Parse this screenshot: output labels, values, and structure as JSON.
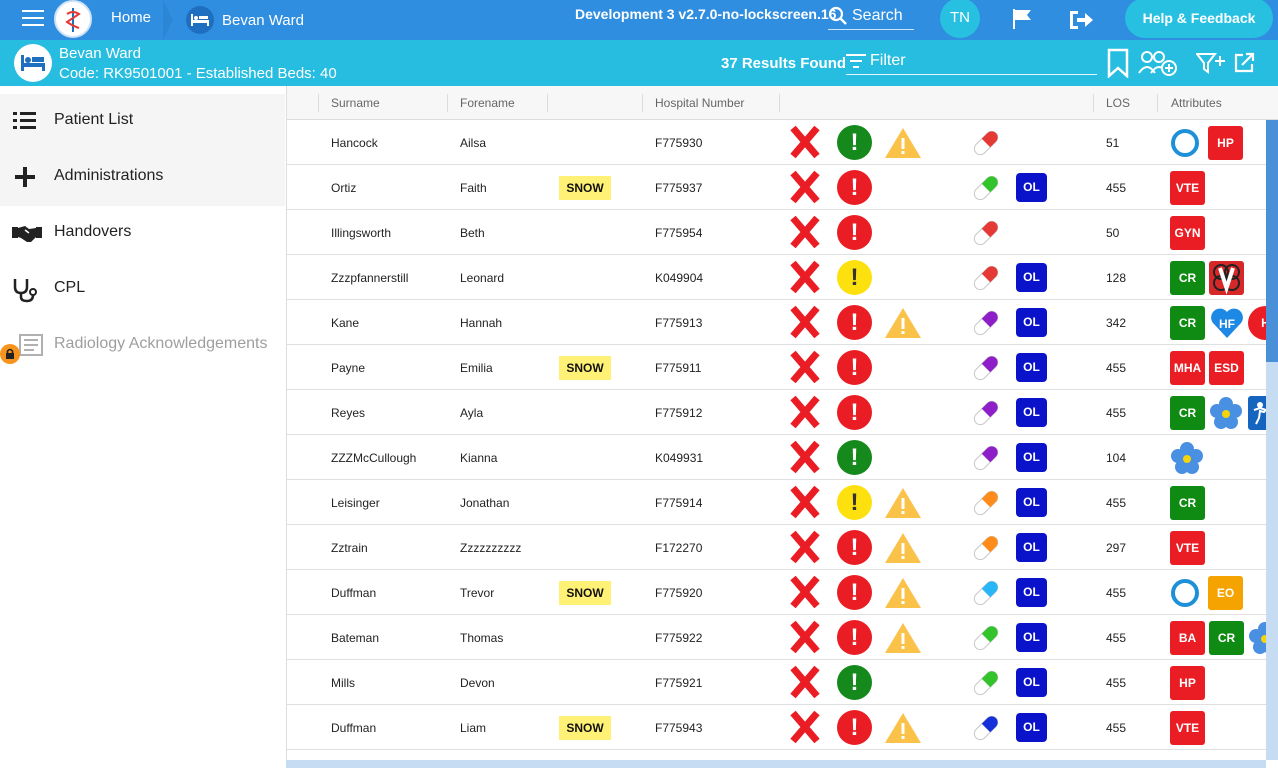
{
  "header": {
    "home_label": "Home",
    "ward_crumb": "Bevan Ward",
    "environment": "Development 3 v2.7.0-no-lockscreen.16",
    "search_label": "Search",
    "user_initials": "TN",
    "help_label": "Help & Feedback"
  },
  "ward": {
    "name": "Bevan Ward",
    "code_line": "Code: RK9501001 - Established Beds: 40",
    "results": "37 Results Found",
    "filter_label": "Filter"
  },
  "sidebar": {
    "items": [
      {
        "label": "Patient List",
        "icon": "list-icon"
      },
      {
        "label": "Administrations",
        "icon": "plus-icon"
      },
      {
        "label": "Handovers",
        "icon": "handshake-icon"
      },
      {
        "label": "CPL",
        "icon": "stethoscope-icon"
      },
      {
        "label": "Radiology Acknowledgements",
        "icon": "radiology-icon",
        "locked": true
      }
    ]
  },
  "table": {
    "headers": {
      "surname": "Surname",
      "forename": "Forename",
      "hospital_number": "Hospital Number",
      "los": "LOS",
      "attributes": "Attributes"
    },
    "rows": [
      {
        "surname": "Hancock",
        "forename": "Ailsa",
        "snow": "",
        "hosp": "F775930",
        "status": "green",
        "warn": true,
        "pill": "red",
        "ol": "",
        "los": "51",
        "attrs": [
          "ring",
          "HP"
        ]
      },
      {
        "surname": "Ortiz",
        "forename": "Faith",
        "snow": "SNOW",
        "hosp": "F775937",
        "status": "red",
        "warn": false,
        "pill": "green",
        "ol": "OL",
        "los": "455",
        "attrs": [
          "VTE"
        ]
      },
      {
        "surname": "Illingsworth",
        "forename": "Beth",
        "snow": "",
        "hosp": "F775954",
        "status": "red",
        "warn": false,
        "pill": "red",
        "ol": "",
        "los": "50",
        "attrs": [
          "GYN"
        ]
      },
      {
        "surname": "Zzzpfannerstill",
        "forename": "Leonard",
        "snow": "",
        "hosp": "K049904",
        "status": "yellow",
        "warn": false,
        "pill": "red",
        "ol": "OL",
        "los": "128",
        "attrs": [
          "CR",
          "V"
        ]
      },
      {
        "surname": "Kane",
        "forename": "Hannah",
        "snow": "",
        "hosp": "F775913",
        "status": "red",
        "warn": true,
        "pill": "purple",
        "ol": "OL",
        "los": "342",
        "attrs": [
          "CR",
          "HF",
          "H"
        ]
      },
      {
        "surname": "Payne",
        "forename": "Emilia",
        "snow": "SNOW",
        "hosp": "F775911",
        "status": "red",
        "warn": false,
        "pill": "purple",
        "ol": "OL",
        "los": "455",
        "attrs": [
          "MHA",
          "ESD"
        ]
      },
      {
        "surname": "Reyes",
        "forename": "Ayla",
        "snow": "",
        "hosp": "F775912",
        "status": "red",
        "warn": false,
        "pill": "purple",
        "ol": "OL",
        "los": "455",
        "attrs": [
          "CR",
          "flower",
          "person"
        ]
      },
      {
        "surname": "ZZZMcCullough",
        "forename": "Kianna",
        "snow": "",
        "hosp": "K049931",
        "status": "green",
        "warn": false,
        "pill": "purple",
        "ol": "OL",
        "los": "104",
        "attrs": [
          "flower"
        ]
      },
      {
        "surname": "Leisinger",
        "forename": "Jonathan",
        "snow": "",
        "hosp": "F775914",
        "status": "yellow",
        "warn": true,
        "pill": "orange",
        "ol": "OL",
        "los": "455",
        "attrs": [
          "CR"
        ]
      },
      {
        "surname": "Zztrain",
        "forename": "Zzzzzzzzzz",
        "snow": "",
        "hosp": "F172270",
        "status": "red",
        "warn": true,
        "pill": "orange",
        "ol": "OL",
        "los": "297",
        "attrs": [
          "VTE"
        ]
      },
      {
        "surname": "Duffman",
        "forename": "Trevor",
        "snow": "SNOW",
        "hosp": "F775920",
        "status": "red",
        "warn": true,
        "pill": "cyan",
        "ol": "OL",
        "los": "455",
        "attrs": [
          "ring",
          "EO"
        ]
      },
      {
        "surname": "Bateman",
        "forename": "Thomas",
        "snow": "",
        "hosp": "F775922",
        "status": "red",
        "warn": true,
        "pill": "green",
        "ol": "OL",
        "los": "455",
        "attrs": [
          "BA",
          "CR",
          "flower"
        ]
      },
      {
        "surname": "Mills",
        "forename": "Devon",
        "snow": "",
        "hosp": "F775921",
        "status": "green",
        "warn": false,
        "pill": "green",
        "ol": "OL",
        "los": "455",
        "attrs": [
          "HP"
        ]
      },
      {
        "surname": "Duffman",
        "forename": "Liam",
        "snow": "SNOW",
        "hosp": "F775943",
        "status": "red",
        "warn": true,
        "pill": "blue",
        "ol": "OL",
        "los": "455",
        "attrs": [
          "VTE"
        ]
      }
    ]
  },
  "colors": {
    "topbar": "#2f8ee0",
    "wardbar": "#27bde0",
    "status_red": "#ea1c24",
    "status_green": "#15891b",
    "status_yellow": "#fde10e",
    "badge_red": "#ea1c24",
    "badge_green": "#0f8a12",
    "badge_orange": "#f5a300",
    "ol_blue": "#0a13c9"
  }
}
